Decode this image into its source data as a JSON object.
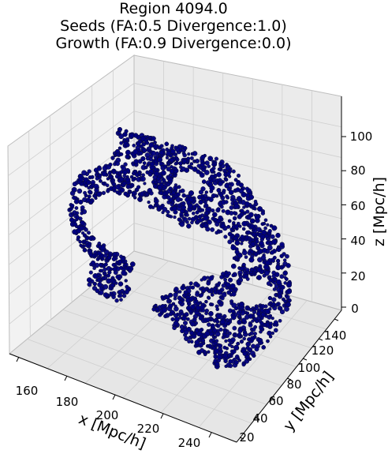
{
  "chart_data": {
    "type": "scatter",
    "projection": "3d",
    "title_lines": [
      "Region 4094.0",
      "Seeds (FA:0.5 Divergence:1.0)",
      "Growth (FA:0.9 Divergence:0.0)"
    ],
    "xlabel": "x [Mpc/h]",
    "ylabel": "y [Mpc/h]",
    "zlabel": "z [Mpc/h]",
    "x_ticks": [
      "160",
      "180",
      "200",
      "220",
      "240"
    ],
    "y_ticks": [
      "20",
      "40",
      "60",
      "80",
      "100",
      "120",
      "140"
    ],
    "z_ticks": [
      "0",
      "20",
      "40",
      "60",
      "80",
      "100"
    ],
    "xlim": [
      155,
      250
    ],
    "ylim": [
      10,
      150
    ],
    "zlim": [
      0,
      115
    ],
    "grid": true,
    "legend": "none",
    "marker_color": "#000080",
    "edge_color": "#0b0b2e",
    "pane_color": "#f2f2f2"
  }
}
